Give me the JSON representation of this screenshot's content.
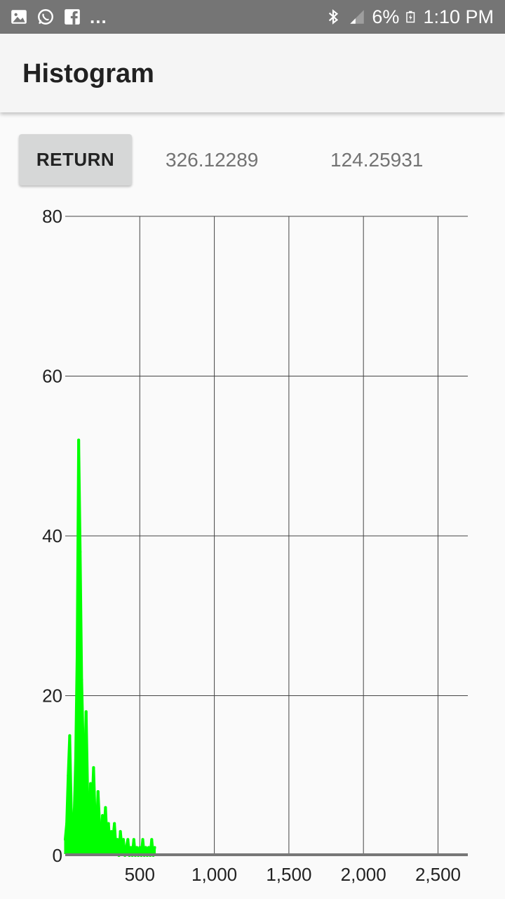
{
  "status_bar": {
    "time": "1:10 PM",
    "battery": "6%",
    "overflow": "...",
    "left_icons": [
      "gallery-icon",
      "whatsapp-icon",
      "facebook-icon"
    ],
    "right_icons": [
      "bluetooth-icon",
      "signal-icon",
      "battery-icon"
    ]
  },
  "app_bar": {
    "title": "Histogram"
  },
  "controls": {
    "return_label": "RETURN",
    "value_1": "326.12289",
    "value_2": "124.25931"
  },
  "colors": {
    "series": "#00ff00",
    "grid": "#444444",
    "baseline": "#777777"
  },
  "chart_data": {
    "type": "line",
    "title": "",
    "xlabel": "",
    "ylabel": "",
    "xlim": [
      0,
      2700
    ],
    "ylim": [
      0,
      80
    ],
    "x_ticks": [
      500,
      1000,
      1500,
      2000,
      2500
    ],
    "x_tick_labels": [
      "500",
      "1,000",
      "1,500",
      "2,000",
      "2,500"
    ],
    "y_ticks": [
      0,
      20,
      40,
      60,
      80
    ],
    "y_tick_labels": [
      "0",
      "20",
      "40",
      "60",
      "80"
    ],
    "grid": true,
    "legend": "none",
    "series": [
      {
        "x": [
          0,
          10,
          20,
          30,
          40,
          50,
          60,
          70,
          80,
          90,
          100,
          110,
          120,
          130,
          140,
          150,
          160,
          170,
          180,
          190,
          200,
          210,
          220,
          230,
          240,
          250,
          260,
          270,
          280,
          290,
          300,
          310,
          320,
          330,
          340,
          350,
          360,
          370,
          380,
          390,
          400,
          410,
          420,
          430,
          440,
          450,
          460,
          470,
          480,
          490,
          500,
          510,
          520,
          530,
          540,
          550,
          560,
          570,
          580,
          590,
          600
        ],
        "y": [
          2,
          4,
          10,
          15,
          6,
          3,
          5,
          12,
          25,
          52,
          38,
          22,
          14,
          10,
          18,
          8,
          4,
          9,
          6,
          11,
          5,
          3,
          8,
          4,
          2,
          5,
          3,
          6,
          2,
          4,
          1,
          3,
          2,
          4,
          1,
          2,
          0,
          3,
          1,
          2,
          0,
          1,
          2,
          0,
          1,
          0,
          2,
          0,
          1,
          0,
          1,
          0,
          2,
          0,
          1,
          0,
          1,
          0,
          2,
          0,
          1
        ]
      }
    ]
  }
}
